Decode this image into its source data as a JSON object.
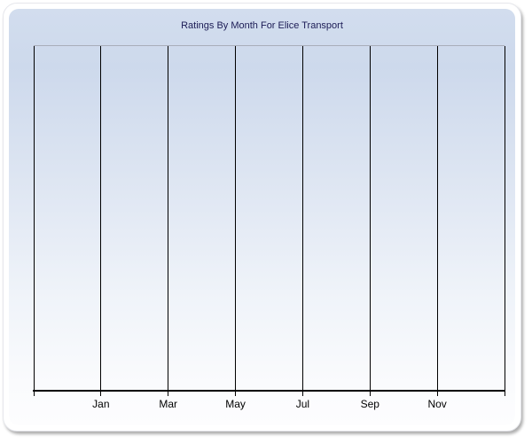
{
  "chart_data": {
    "type": "line",
    "title": "Ratings By Month For Elice Transport",
    "categories": [
      "Jan",
      "Mar",
      "May",
      "Jul",
      "Sep",
      "Nov"
    ],
    "series": [],
    "xlabel": "",
    "ylabel": "",
    "y_tick_labels": [],
    "legend": "none",
    "grid": "vertical-only",
    "x_gridline_count": 8,
    "plot_is_empty": true
  },
  "colors": {
    "title_text": "#1b1b55",
    "gridline": "#000000",
    "axis_line": "#000000",
    "tick_label_text": "#000000",
    "plot_top_border": "#a8aeb9",
    "panel_gradient_top": "#d2ddee",
    "panel_gradient_bottom": "#fdfdfe",
    "panel_border": "#ffffff"
  }
}
